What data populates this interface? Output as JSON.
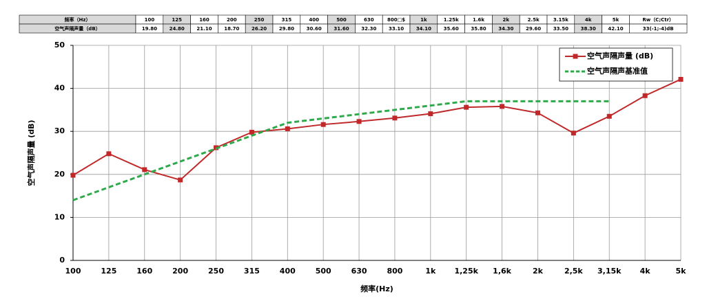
{
  "table": {
    "rows": [
      [
        "频率（Hz）",
        "100",
        "125",
        "160",
        "200",
        "250",
        "315",
        "400",
        "500",
        "630",
        "800□$",
        "1k",
        "1.25k",
        "1.6k",
        "2k",
        "2.5k",
        "3.15k",
        "4k",
        "5k",
        "Rw（C;Ctr）"
      ],
      [
        "空气声隔声量（dB）",
        "19.80",
        "24.80",
        "21.10",
        "18.70",
        "26.20",
        "29.80",
        "30.60",
        "31.60",
        "32.30",
        "33.10",
        "34.10",
        "35.60",
        "35.80",
        "34.30",
        "29.60",
        "33.50",
        "38.30",
        "42.10",
        "33(-1;-4)dB"
      ]
    ]
  },
  "chart_data": {
    "type": "line",
    "categories": [
      "100",
      "125",
      "160",
      "200",
      "250",
      "315",
      "400",
      "500",
      "630",
      "800",
      "1k",
      "1,25k",
      "1,6k",
      "2k",
      "2,5k",
      "3,15k",
      "4k",
      "5k"
    ],
    "series": [
      {
        "name": "空气声隔声量 (dB)",
        "color": "#c0282a",
        "style": "solid-marker",
        "values": [
          19.8,
          24.8,
          21.1,
          18.7,
          26.2,
          29.8,
          30.6,
          31.6,
          32.3,
          33.1,
          34.1,
          35.6,
          35.8,
          34.3,
          29.6,
          33.5,
          38.3,
          42.1
        ]
      },
      {
        "name": "空气声隔声基准值",
        "color": "#2eaa4a",
        "style": "dashed",
        "values": [
          14,
          17,
          20,
          23,
          26,
          29,
          32,
          33,
          34,
          35,
          36,
          37,
          37,
          37,
          37,
          37,
          null,
          null
        ]
      }
    ],
    "x_label": "频率(Hz)",
    "y_label": "空气声隔声量 (dB)",
    "ylim": [
      0,
      50
    ],
    "yticks": [
      0,
      10,
      20,
      30,
      40,
      50
    ],
    "grid": true,
    "legend": "top-right"
  }
}
